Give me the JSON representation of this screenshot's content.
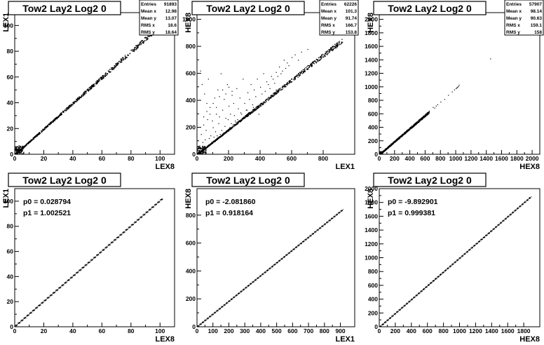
{
  "chart_data": [
    {
      "type": "scatter",
      "title": "Tow2 Lay2 Log2 0",
      "xlabel": "LEX8",
      "ylabel": "LEX1",
      "xlim": [
        0,
        110
      ],
      "ylim": [
        0,
        110
      ],
      "xticks": [
        0,
        20,
        40,
        60,
        80,
        100
      ],
      "yticks": [
        0,
        20,
        40,
        60,
        80,
        100
      ],
      "stats": [
        {
          "label": "Entries",
          "value": "91893"
        },
        {
          "label": "Mean x",
          "value": "12.98"
        },
        {
          "label": "Mean y",
          "value": "13.07"
        },
        {
          "label": "RMS x",
          "value": "18.6"
        },
        {
          "label": "RMS y",
          "value": "18.64"
        }
      ],
      "trend": {
        "slope": 1.0,
        "intercept": 0.0,
        "xmax": 100
      },
      "outliers": []
    },
    {
      "type": "scatter",
      "title": "Tow2 Lay2 Log2 0",
      "xlabel": "LEX1",
      "ylabel": "HEX8",
      "xlim": [
        0,
        1000
      ],
      "ylim": [
        0,
        1050
      ],
      "xticks": [
        0,
        200,
        400,
        600,
        800
      ],
      "yticks": [
        0,
        200,
        400,
        600,
        800,
        1000
      ],
      "stats": [
        {
          "label": "Entries",
          "value": "62226"
        },
        {
          "label": "Mean x",
          "value": "101.3"
        },
        {
          "label": "Mean y",
          "value": "91.74"
        },
        {
          "label": "RMS x",
          "value": "166.7"
        },
        {
          "label": "RMS y",
          "value": "153.8"
        }
      ],
      "trend": {
        "slope": 0.92,
        "intercept": 0.0,
        "xmax": 920
      },
      "outliers": [
        [
          20,
          620
        ],
        [
          30,
          520
        ],
        [
          45,
          450
        ],
        [
          60,
          380
        ],
        [
          70,
          560
        ],
        [
          80,
          300
        ],
        [
          95,
          250
        ],
        [
          110,
          420
        ],
        [
          120,
          350
        ],
        [
          130,
          480
        ],
        [
          140,
          280
        ],
        [
          150,
          600
        ],
        [
          160,
          330
        ],
        [
          170,
          410
        ],
        [
          180,
          270
        ],
        [
          190,
          520
        ],
        [
          200,
          360
        ],
        [
          210,
          300
        ],
        [
          220,
          440
        ],
        [
          230,
          380
        ],
        [
          240,
          250
        ],
        [
          250,
          490
        ],
        [
          260,
          340
        ],
        [
          270,
          420
        ],
        [
          280,
          300
        ],
        [
          290,
          560
        ],
        [
          300,
          380
        ],
        [
          310,
          330
        ],
        [
          320,
          460
        ],
        [
          330,
          410
        ],
        [
          340,
          520
        ],
        [
          350,
          370
        ],
        [
          360,
          480
        ],
        [
          370,
          430
        ],
        [
          380,
          560
        ],
        [
          390,
          300
        ],
        [
          400,
          500
        ],
        [
          410,
          450
        ],
        [
          420,
          600
        ],
        [
          430,
          470
        ],
        [
          440,
          540
        ],
        [
          450,
          520
        ],
        [
          460,
          490
        ],
        [
          470,
          580
        ],
        [
          480,
          560
        ],
        [
          490,
          530
        ],
        [
          500,
          610
        ],
        [
          510,
          580
        ],
        [
          520,
          650
        ],
        [
          530,
          600
        ],
        [
          540,
          620
        ],
        [
          550,
          700
        ],
        [
          560,
          640
        ],
        [
          570,
          680
        ],
        [
          580,
          660
        ],
        [
          600,
          720
        ],
        [
          620,
          740
        ],
        [
          640,
          700
        ],
        [
          660,
          760
        ],
        [
          700,
          780
        ],
        [
          25,
          150
        ],
        [
          40,
          220
        ],
        [
          55,
          180
        ],
        [
          65,
          260
        ],
        [
          85,
          140
        ],
        [
          100,
          200
        ],
        [
          115,
          170
        ],
        [
          135,
          230
        ],
        [
          155,
          180
        ],
        [
          175,
          210
        ],
        [
          195,
          260
        ],
        [
          215,
          230
        ],
        [
          235,
          290
        ],
        [
          255,
          260
        ],
        [
          275,
          310
        ],
        [
          295,
          280
        ],
        [
          315,
          330
        ],
        [
          335,
          300
        ],
        [
          355,
          350
        ],
        [
          375,
          340
        ],
        [
          15,
          60
        ],
        [
          35,
          90
        ],
        [
          50,
          110
        ],
        [
          75,
          120
        ],
        [
          90,
          90
        ],
        [
          105,
          130
        ],
        [
          125,
          140
        ],
        [
          145,
          150
        ],
        [
          165,
          160
        ],
        [
          185,
          170
        ],
        [
          205,
          200
        ],
        [
          225,
          220
        ],
        [
          245,
          240
        ],
        [
          265,
          250
        ],
        [
          285,
          270
        ],
        [
          305,
          290
        ],
        [
          325,
          310
        ],
        [
          345,
          320
        ],
        [
          365,
          340
        ],
        [
          385,
          360
        ],
        [
          460,
          420
        ],
        [
          480,
          450
        ],
        [
          500,
          480
        ],
        [
          520,
          490
        ],
        [
          540,
          500
        ],
        [
          560,
          520
        ],
        [
          580,
          540
        ],
        [
          600,
          560
        ],
        [
          620,
          580
        ],
        [
          640,
          600
        ],
        [
          660,
          620
        ],
        [
          680,
          640
        ],
        [
          700,
          660
        ],
        [
          720,
          670
        ],
        [
          740,
          690
        ],
        [
          760,
          700
        ],
        [
          780,
          720
        ],
        [
          800,
          740
        ],
        [
          820,
          760
        ],
        [
          840,
          780
        ],
        [
          860,
          800
        ],
        [
          880,
          820
        ],
        [
          900,
          840
        ],
        [
          470,
          440
        ],
        [
          510,
          470
        ],
        [
          550,
          510
        ],
        [
          590,
          550
        ],
        [
          630,
          590
        ],
        [
          670,
          630
        ],
        [
          710,
          650
        ],
        [
          140,
          430
        ],
        [
          160,
          480
        ],
        [
          180,
          450
        ],
        [
          200,
          500
        ],
        [
          220,
          470
        ],
        [
          60,
          320
        ],
        [
          80,
          350
        ],
        [
          100,
          380
        ],
        [
          120,
          300
        ],
        [
          40,
          280
        ]
      ]
    },
    {
      "type": "scatter",
      "title": "Tow2 Lay2 Log2 0",
      "xlabel": "HEX8",
      "ylabel": "HEX8",
      "xlim": [
        0,
        2100
      ],
      "ylim": [
        0,
        2100
      ],
      "xticks": [
        0,
        200,
        400,
        600,
        800,
        1000,
        1200,
        1400,
        1600,
        1800,
        2000
      ],
      "yticks": [
        0,
        200,
        400,
        600,
        800,
        1000,
        1200,
        1400,
        1600,
        1800,
        2000
      ],
      "stats": [
        {
          "label": "Entries",
          "value": "57907"
        },
        {
          "label": "Mean x",
          "value": "98.14"
        },
        {
          "label": "Mean y",
          "value": "90.63"
        },
        {
          "label": "RMS x",
          "value": "159.1"
        },
        {
          "label": "RMS y",
          "value": "158"
        }
      ],
      "trend": {
        "slope": 0.97,
        "intercept": 0.0,
        "xmax": 650
      },
      "outliers": [
        [
          700,
          700
        ],
        [
          720,
          690
        ],
        [
          740,
          720
        ],
        [
          760,
          740
        ],
        [
          800,
          780
        ],
        [
          850,
          820
        ],
        [
          900,
          880
        ],
        [
          950,
          930
        ],
        [
          980,
          960
        ],
        [
          1000,
          980
        ],
        [
          1010,
          990
        ],
        [
          1020,
          1000
        ],
        [
          1030,
          1010
        ],
        [
          1040,
          1030
        ],
        [
          1450,
          1420
        ]
      ]
    },
    {
      "type": "line",
      "title": "Tow2 Lay2 Log2 0",
      "xlabel": "LEX8",
      "ylabel": "LEX1",
      "xlim": [
        0,
        110
      ],
      "ylim": [
        0,
        110
      ],
      "xticks": [
        0,
        20,
        40,
        60,
        80,
        100
      ],
      "yticks": [
        0,
        20,
        40,
        60,
        80,
        100
      ],
      "fit": {
        "p0": "0.028794",
        "p1": "1.002521"
      },
      "trend": {
        "slope": 1.002521,
        "intercept": 0.028794,
        "xmax": 102
      },
      "step": 2
    },
    {
      "type": "line",
      "title": "Tow2 Lay2 Log2 0",
      "xlabel": "LEX1",
      "ylabel": "HEX8",
      "xlim": [
        0,
        990
      ],
      "ylim": [
        0,
        990
      ],
      "xticks": [
        0,
        100,
        200,
        300,
        400,
        500,
        600,
        700,
        800,
        900
      ],
      "yticks": [
        0,
        200,
        400,
        600,
        800
      ],
      "fit": {
        "p0": "-2.081860",
        "p1": "0.918164"
      },
      "trend": {
        "slope": 0.918164,
        "intercept": -2.08186,
        "xmax": 920
      },
      "step": 15
    },
    {
      "type": "line",
      "title": "Tow2 Lay2 Log2 0",
      "xlabel": "HEX8",
      "ylabel": "HEX8",
      "xlim": [
        0,
        2000
      ],
      "ylim": [
        0,
        2000
      ],
      "xticks": [
        0,
        200,
        400,
        600,
        800,
        1000,
        1200,
        1400,
        1600,
        1800
      ],
      "yticks": [
        0,
        200,
        400,
        600,
        800,
        1000,
        1200,
        1400,
        1600,
        1800,
        2000
      ],
      "fit": {
        "p0": "-9.892901",
        "p1": "0.999381"
      },
      "trend": {
        "slope": 0.999381,
        "intercept": -9.892901,
        "xmax": 1900
      },
      "step": 30
    }
  ]
}
